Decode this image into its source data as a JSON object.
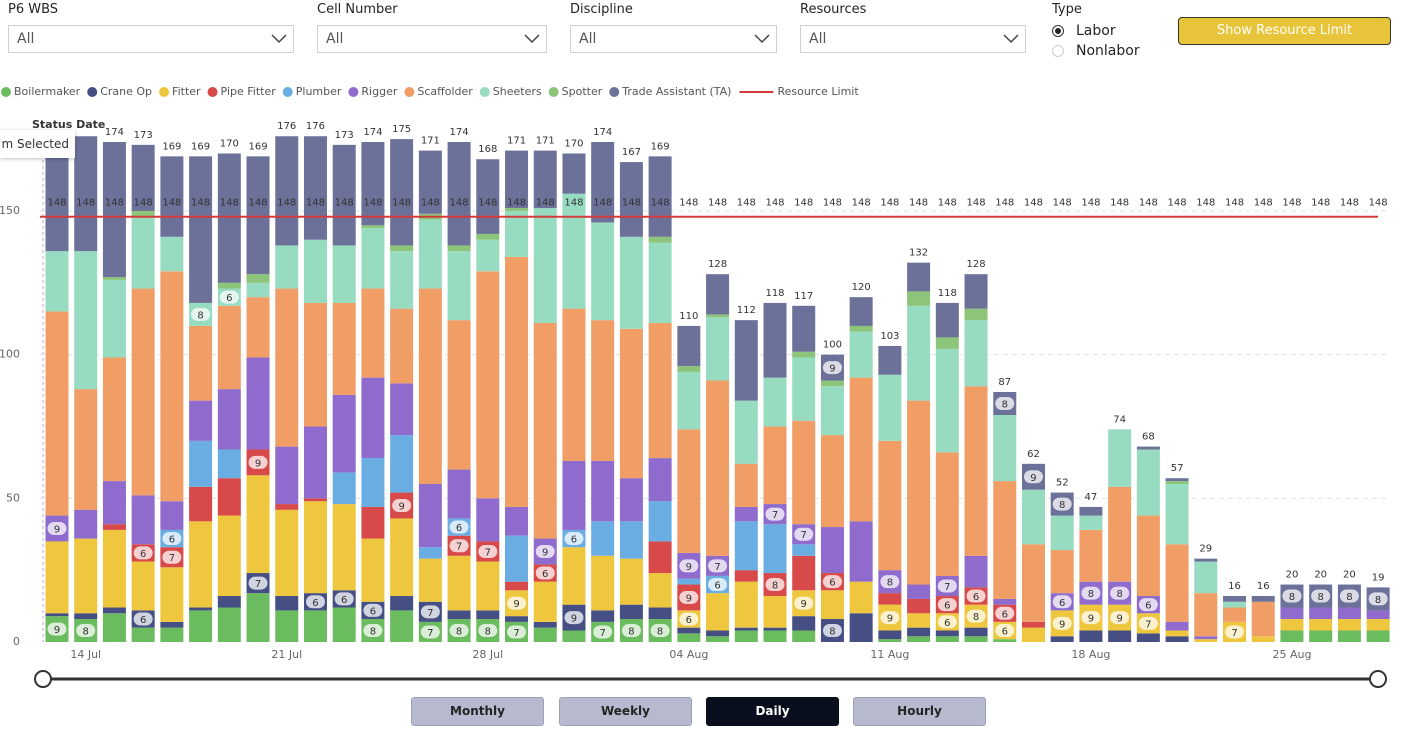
{
  "filters": [
    {
      "label": "P6 WBS",
      "value": "All"
    },
    {
      "label": "Cell Number",
      "value": "All"
    },
    {
      "label": "Discipline",
      "value": "All"
    },
    {
      "label": "Resources",
      "value": "All"
    }
  ],
  "type_filter": {
    "label": "Type",
    "options": [
      "Labor",
      "Nonlabor"
    ]
  },
  "button": "Show Resource Limit",
  "status_date": "Status Date",
  "tooltip": "m Selected",
  "period_buttons": [
    "Monthly",
    "Weekly",
    "Daily",
    "Hourly"
  ],
  "chart_data": {
    "type": "bar",
    "stacked": true,
    "categories": [
      null,
      "14 Jul",
      null,
      null,
      null,
      null,
      null,
      null,
      "21 Jul",
      null,
      null,
      null,
      null,
      null,
      null,
      "28 Jul",
      null,
      null,
      null,
      null,
      null,
      null,
      "04 Aug",
      null,
      null,
      null,
      null,
      null,
      null,
      "11 Aug",
      null,
      null,
      null,
      null,
      null,
      null,
      "18 Aug",
      null,
      null,
      null,
      null,
      null,
      null,
      "25 Aug",
      null,
      null,
      null
    ],
    "series": [
      {
        "name": "Boilermaker",
        "color": "#6bbb5f",
        "values": [
          9,
          8,
          10,
          5,
          5,
          11,
          12,
          17,
          11,
          11,
          12,
          8,
          11,
          7,
          8,
          8,
          7,
          5,
          4,
          7,
          8,
          8,
          3,
          2,
          4,
          4,
          4,
          0,
          0,
          1,
          2,
          2,
          2,
          1,
          0,
          0,
          0,
          0,
          0,
          0,
          0,
          0,
          0,
          4,
          4,
          4,
          4
        ]
      },
      {
        "name": "Crane Op",
        "color": "#464f84",
        "values": [
          1,
          2,
          2,
          6,
          2,
          1,
          4,
          7,
          5,
          6,
          6,
          6,
          5,
          7,
          3,
          3,
          2,
          2,
          9,
          4,
          5,
          4,
          2,
          2,
          1,
          1,
          5,
          8,
          10,
          3,
          3,
          2,
          3,
          0,
          0,
          2,
          4,
          4,
          3,
          2,
          0,
          0,
          0,
          0,
          0,
          0,
          0
        ]
      },
      {
        "name": "Fitter",
        "color": "#efc73e",
        "values": [
          25,
          26,
          27,
          17,
          19,
          30,
          28,
          34,
          30,
          32,
          30,
          22,
          27,
          15,
          19,
          17,
          9,
          14,
          20,
          19,
          16,
          12,
          6,
          13,
          16,
          11,
          9,
          10,
          11,
          9,
          5,
          6,
          8,
          6,
          5,
          9,
          9,
          9,
          7,
          2,
          1,
          7,
          2,
          4,
          4,
          4,
          4
        ]
      },
      {
        "name": "Pipe Fitter",
        "color": "#d84a4a",
        "values": [
          0,
          0,
          2,
          6,
          7,
          12,
          13,
          9,
          2,
          1,
          0,
          11,
          9,
          0,
          7,
          7,
          3,
          6,
          0,
          0,
          0,
          11,
          9,
          0,
          4,
          8,
          12,
          6,
          0,
          4,
          5,
          6,
          6,
          6,
          2,
          0,
          0,
          0,
          0,
          0,
          0,
          0,
          0,
          0,
          0,
          0,
          0
        ]
      },
      {
        "name": "Plumber",
        "color": "#6aade2",
        "values": [
          0,
          0,
          0,
          0,
          6,
          16,
          10,
          0,
          0,
          0,
          11,
          17,
          20,
          4,
          6,
          0,
          16,
          0,
          6,
          12,
          13,
          14,
          2,
          6,
          17,
          17,
          4,
          0,
          0,
          0,
          0,
          0,
          0,
          0,
          0,
          0,
          0,
          0,
          0,
          0,
          0,
          0,
          0,
          0,
          0,
          0,
          0
        ]
      },
      {
        "name": "Rigger",
        "color": "#8e6bcc",
        "values": [
          9,
          10,
          15,
          17,
          10,
          14,
          21,
          32,
          20,
          25,
          27,
          28,
          18,
          22,
          17,
          15,
          10,
          9,
          24,
          21,
          15,
          15,
          9,
          7,
          5,
          7,
          7,
          16,
          21,
          8,
          5,
          7,
          11,
          2,
          0,
          6,
          8,
          8,
          6,
          3,
          1,
          0,
          0,
          4,
          4,
          4,
          3
        ]
      },
      {
        "name": "Scaffolder",
        "color": "#f09d66",
        "values": [
          71,
          42,
          43,
          72,
          80,
          26,
          29,
          21,
          55,
          43,
          32,
          31,
          26,
          68,
          52,
          79,
          87,
          75,
          53,
          49,
          52,
          47,
          43,
          61,
          15,
          27,
          36,
          32,
          50,
          45,
          64,
          43,
          59,
          41,
          27,
          15,
          18,
          33,
          28,
          27,
          15,
          5,
          12,
          0,
          0,
          0,
          0
        ]
      },
      {
        "name": "Sheeters",
        "color": "#97dcc0",
        "values": [
          21,
          48,
          27,
          25,
          12,
          8,
          6,
          5,
          15,
          22,
          20,
          21,
          20,
          24,
          24,
          11,
          16,
          40,
          40,
          34,
          32,
          28,
          20,
          22,
          22,
          17,
          22,
          17,
          16,
          23,
          33,
          36,
          23,
          23,
          19,
          12,
          5,
          20,
          23,
          21,
          11,
          2,
          0,
          0,
          0,
          0,
          0
        ]
      },
      {
        "name": "Spotter",
        "color": "#8cc57a",
        "values": [
          0,
          0,
          1,
          2,
          0,
          0,
          2,
          3,
          0,
          0,
          0,
          1,
          2,
          2,
          2,
          2,
          1,
          0,
          0,
          0,
          0,
          2,
          2,
          1,
          0,
          0,
          2,
          2,
          2,
          0,
          5,
          4,
          4,
          0,
          0,
          0,
          0,
          0,
          0,
          1,
          0,
          0,
          0,
          0,
          0,
          0,
          0
        ]
      },
      {
        "name": "Trade Assistant (TA)",
        "color": "#6b7199",
        "values": [
          39,
          40,
          47,
          23,
          28,
          51,
          45,
          41,
          38,
          36,
          35,
          29,
          37,
          22,
          36,
          26,
          20,
          20,
          14,
          28,
          26,
          28,
          14,
          14,
          28,
          26,
          16,
          9,
          10,
          10,
          10,
          12,
          12,
          8,
          9,
          8,
          3,
          0,
          1,
          1,
          1,
          2,
          2,
          8,
          8,
          8,
          8
        ]
      }
    ],
    "totals": [
      null,
      null,
      174,
      173,
      169,
      169,
      170,
      169,
      176,
      176,
      173,
      174,
      175,
      171,
      174,
      168,
      171,
      171,
      170,
      174,
      167,
      169,
      110,
      128,
      112,
      118,
      117,
      100,
      120,
      103,
      132,
      118,
      128,
      87,
      62,
      52,
      47,
      74,
      68,
      57,
      29,
      16,
      16,
      20,
      20,
      20,
      19
    ],
    "resource_limit": {
      "name": "Resource Limit",
      "color": "#d33b3b",
      "values": [
        148,
        148,
        148,
        148,
        148,
        148,
        148,
        148,
        148,
        148,
        148,
        148,
        148,
        148,
        148,
        148,
        148,
        148,
        148,
        148,
        148,
        148,
        148,
        148,
        148,
        148,
        148,
        148,
        148,
        148,
        148,
        148,
        148,
        148,
        148,
        148,
        148,
        148,
        148,
        148,
        148,
        148,
        148,
        148,
        148,
        148,
        148
      ]
    },
    "ylim": [
      0,
      182
    ],
    "yticks": [
      0,
      50,
      100,
      150
    ],
    "grid": true
  }
}
